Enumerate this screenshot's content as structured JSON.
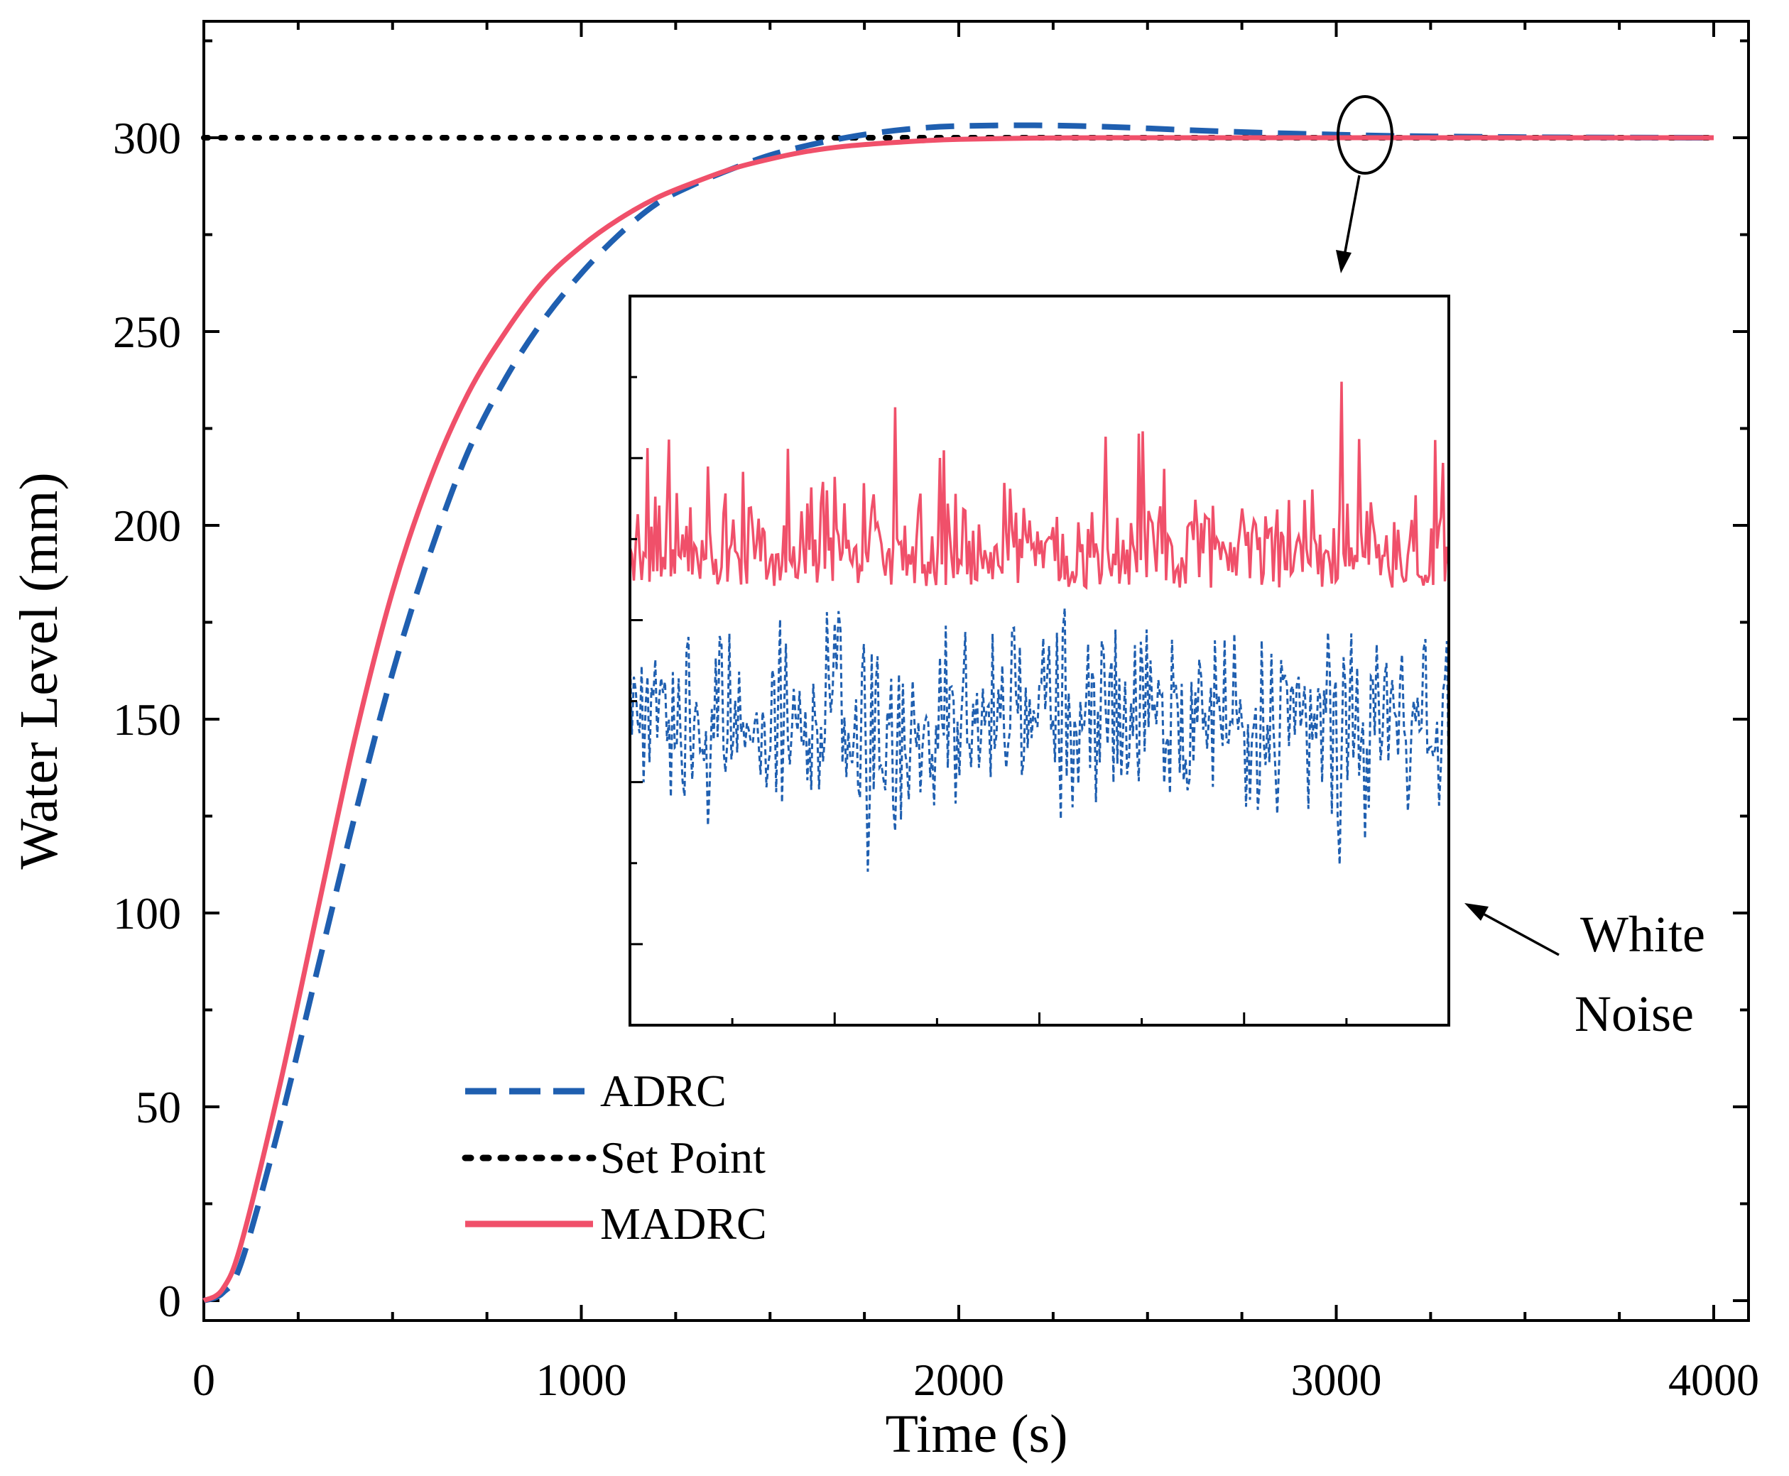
{
  "chart_data": {
    "type": "line",
    "title": "",
    "xlabel": "Time (s)",
    "ylabel": "Water Level (mm)",
    "xlim": [
      0,
      4100
    ],
    "ylim": [
      -10,
      325
    ],
    "xticks": [
      0,
      1000,
      2000,
      3000,
      4000
    ],
    "xtick_labels": [
      "0",
      "1000",
      "2000",
      "3000",
      "4000"
    ],
    "yticks": [
      0,
      50,
      100,
      150,
      200,
      250,
      300
    ],
    "ytick_labels": [
      "0",
      "50",
      "100",
      "150",
      "200",
      "250",
      "300"
    ],
    "grid": false,
    "legend_position": "bottom-left",
    "series": [
      {
        "name": "ADRC",
        "style": "dashed",
        "color": "#1f5fb0",
        "x": [
          0,
          50,
          100,
          200,
          300,
          400,
          500,
          600,
          700,
          800,
          900,
          1000,
          1100,
          1200,
          1300,
          1400,
          1500,
          1600,
          1700,
          1800,
          1900,
          2000,
          2200,
          2400,
          2600,
          2800,
          3000,
          3200,
          3600,
          4000
        ],
        "y": [
          0,
          2,
          10,
          45,
          85,
          125,
          162,
          193,
          219,
          238,
          253,
          265,
          275,
          283,
          288,
          292,
          295.5,
          298,
          300,
          301.5,
          302.5,
          303,
          303.2,
          302.8,
          302,
          301.3,
          300.8,
          300.4,
          300.1,
          300
        ]
      },
      {
        "name": "Set Point",
        "style": "dotted",
        "color": "#000000",
        "x": [
          0,
          4000
        ],
        "y": [
          300,
          300
        ]
      },
      {
        "name": "MADRC",
        "style": "solid",
        "color": "#f0506a",
        "x": [
          0,
          50,
          100,
          200,
          300,
          400,
          500,
          600,
          700,
          800,
          900,
          1000,
          1100,
          1200,
          1300,
          1400,
          1500,
          1600,
          1700,
          1800,
          1900,
          2000,
          2200,
          2400,
          2600,
          3000,
          3500,
          4000
        ],
        "y": [
          0,
          3,
          15,
          55,
          100,
          145,
          183,
          212,
          234,
          250,
          263,
          272,
          279,
          284.5,
          288.5,
          292,
          294.5,
          296.5,
          297.8,
          298.6,
          299.2,
          299.6,
          299.9,
          300,
          300,
          300,
          300,
          300
        ]
      }
    ],
    "annotations": [
      {
        "text": "White Noise",
        "lines": [
          "White",
          "Noise"
        ],
        "position": "right, pointing at inset lower-right edge"
      },
      {
        "text": "",
        "type": "ellipse marker around t≈3100 on set point, arrow to magnified inset"
      }
    ],
    "inset": {
      "type": "line",
      "description": "magnified view near 300 mm showing white noise on both controllers",
      "series": [
        {
          "name": "ADRC",
          "style": "dashed",
          "color": "#1f5fb0",
          "seed": 11,
          "base": 0.52,
          "amp": 0.55
        },
        {
          "name": "MADRC",
          "style": "solid",
          "color": "#f0506a",
          "seed": 37,
          "base": 0.58,
          "amp": 0.5
        }
      ]
    }
  }
}
